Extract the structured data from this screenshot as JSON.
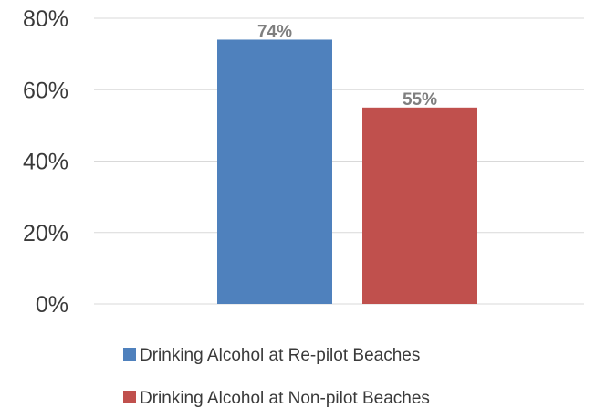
{
  "chart_data": {
    "type": "bar",
    "title": "",
    "xlabel": "",
    "ylabel": "",
    "ylim": [
      0,
      80
    ],
    "y_ticks": [
      0,
      20,
      40,
      60,
      80
    ],
    "y_tick_format": "percent",
    "grid": true,
    "legend_position": "bottom",
    "series": [
      {
        "name": "Drinking Alcohol at Re-pilot Beaches",
        "values": [
          74
        ],
        "label": "74%",
        "color": "#4f81bd"
      },
      {
        "name": "Drinking Alcohol at Non-pilot Beaches",
        "values": [
          55
        ],
        "label": "55%",
        "color": "#c0504d"
      }
    ]
  }
}
